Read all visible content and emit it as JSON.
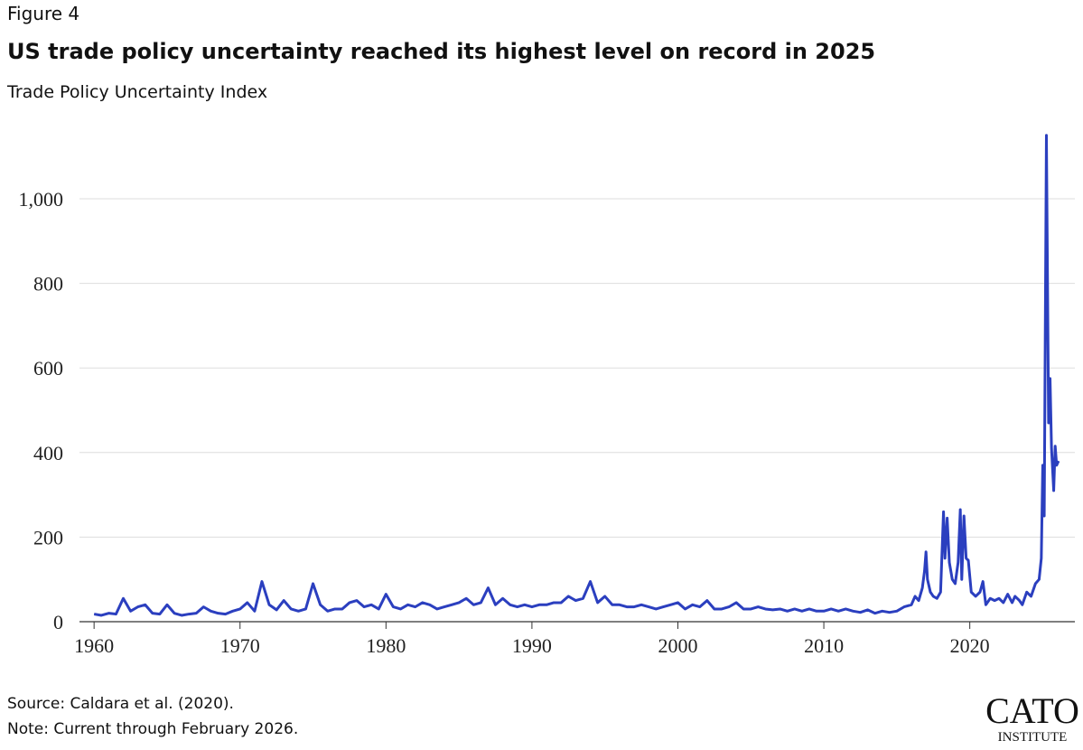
{
  "figure_label": "Figure 4",
  "chart_data": {
    "type": "line",
    "title": "US trade policy uncertainty reached its highest level on record in 2025",
    "subtitle": "Trade Policy Uncertainty Index",
    "color": "#2b3fbf",
    "x": [
      1960,
      1960.5,
      1961,
      1961.5,
      1962,
      1962.5,
      1963,
      1963.5,
      1964,
      1964.5,
      1965,
      1965.5,
      1966,
      1966.5,
      1967,
      1967.5,
      1968,
      1968.5,
      1969,
      1969.5,
      1970,
      1970.5,
      1971,
      1971.5,
      1972,
      1972.5,
      1973,
      1973.5,
      1974,
      1974.5,
      1975,
      1975.5,
      1976,
      1976.5,
      1977,
      1977.5,
      1978,
      1978.5,
      1979,
      1979.5,
      1980,
      1980.5,
      1981,
      1981.5,
      1982,
      1982.5,
      1983,
      1983.5,
      1984,
      1984.5,
      1985,
      1985.5,
      1986,
      1986.5,
      1987,
      1987.5,
      1988,
      1988.5,
      1989,
      1989.5,
      1990,
      1990.5,
      1991,
      1991.5,
      1992,
      1992.5,
      1993,
      1993.5,
      1994,
      1994.5,
      1995,
      1995.5,
      1996,
      1996.5,
      1997,
      1997.5,
      1998,
      1998.5,
      1999,
      1999.5,
      2000,
      2000.5,
      2001,
      2001.5,
      2002,
      2002.5,
      2003,
      2003.5,
      2004,
      2004.5,
      2005,
      2005.5,
      2006,
      2006.5,
      2007,
      2007.5,
      2008,
      2008.5,
      2009,
      2009.5,
      2010,
      2010.5,
      2011,
      2011.5,
      2012,
      2012.5,
      2013,
      2013.5,
      2014,
      2014.5,
      2015,
      2015.5,
      2016,
      2016.25,
      2016.5,
      2016.75,
      2016.9,
      2017,
      2017.1,
      2017.3,
      2017.5,
      2017.75,
      2018,
      2018.2,
      2018.3,
      2018.45,
      2018.6,
      2018.8,
      2019,
      2019.2,
      2019.35,
      2019.45,
      2019.6,
      2019.75,
      2019.9,
      2020.1,
      2020.4,
      2020.7,
      2020.9,
      2021.1,
      2021.4,
      2021.7,
      2022,
      2022.3,
      2022.6,
      2022.9,
      2023.1,
      2023.4,
      2023.6,
      2023.9,
      2024.2,
      2024.5,
      2024.75,
      2024.9,
      2025,
      2025.1,
      2025.25,
      2025.4,
      2025.5,
      2025.6,
      2025.75,
      2025.85,
      2025.95,
      2026.08
    ],
    "values": [
      18,
      15,
      20,
      18,
      55,
      25,
      35,
      40,
      20,
      18,
      40,
      20,
      15,
      18,
      20,
      35,
      25,
      20,
      18,
      25,
      30,
      45,
      25,
      95,
      40,
      28,
      50,
      30,
      25,
      30,
      90,
      40,
      25,
      30,
      30,
      45,
      50,
      35,
      40,
      30,
      65,
      35,
      30,
      40,
      35,
      45,
      40,
      30,
      35,
      40,
      45,
      55,
      40,
      45,
      80,
      40,
      55,
      40,
      35,
      40,
      35,
      40,
      40,
      45,
      45,
      60,
      50,
      55,
      95,
      45,
      60,
      40,
      40,
      35,
      35,
      40,
      35,
      30,
      35,
      40,
      45,
      30,
      40,
      35,
      50,
      30,
      30,
      35,
      45,
      30,
      30,
      35,
      30,
      28,
      30,
      25,
      30,
      25,
      30,
      25,
      25,
      30,
      25,
      30,
      25,
      22,
      28,
      20,
      25,
      22,
      25,
      35,
      40,
      60,
      50,
      80,
      120,
      165,
      100,
      70,
      60,
      55,
      70,
      260,
      150,
      245,
      140,
      100,
      90,
      140,
      265,
      100,
      250,
      150,
      145,
      70,
      60,
      70,
      95,
      40,
      55,
      50,
      55,
      45,
      65,
      45,
      60,
      50,
      40,
      70,
      60,
      90,
      100,
      150,
      370,
      250,
      1150,
      470,
      575,
      410,
      310,
      415,
      370,
      380
    ],
    "xlim": [
      1959,
      2027.2
    ],
    "xticks": [
      1960,
      1970,
      1980,
      1990,
      2000,
      2010,
      2020
    ],
    "ylim": [
      0,
      1200
    ],
    "yticks": [
      0,
      200,
      400,
      600,
      800,
      {
        "value": 1000,
        "label": "1,000"
      }
    ],
    "grid": true
  },
  "source": "Source: Caldara et al. (2020).",
  "note": "Note: Current through February 2026.",
  "logo": {
    "name": "CATO",
    "sub": "INSTITUTE"
  }
}
